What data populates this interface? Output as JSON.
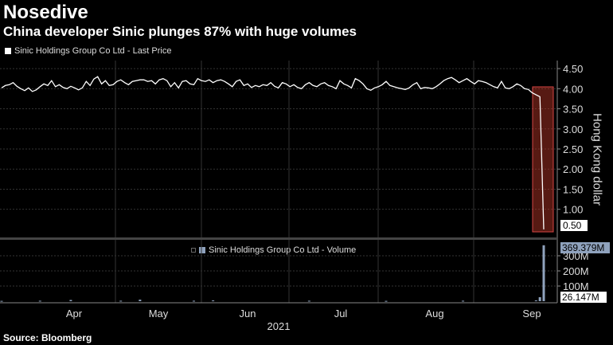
{
  "title": "Nosedive",
  "subtitle": "China developer Sinic plunges 87% with huge volumes",
  "source": "Source: Bloomberg",
  "colors": {
    "background": "#000000",
    "price_line": "#ffffff",
    "volume": "#8fa2bd",
    "highlight": "#c0392b"
  },
  "chart_data": [
    {
      "type": "line",
      "series": [
        {
          "name": "Sinic Holdings Group Co Ltd - Last Price"
        }
      ],
      "ylabel": "Hong Kong dollar",
      "ylim": [
        0.3,
        4.7
      ],
      "yticks": [
        "4.50",
        "4.00",
        "3.50",
        "3.00",
        "2.50",
        "2.00",
        "1.50",
        "1.00"
      ],
      "last_value_label": "0.50",
      "x": [
        0,
        1,
        2,
        3,
        4,
        5,
        6,
        7,
        8,
        9,
        10,
        11,
        12,
        13,
        14,
        15,
        16,
        17,
        18,
        19,
        20,
        21,
        22,
        23,
        24,
        25,
        26,
        27,
        28,
        29,
        30,
        31,
        32,
        33,
        34,
        35,
        36,
        37,
        38,
        39,
        40,
        41,
        42,
        43,
        44,
        45,
        46,
        47,
        48,
        49,
        50,
        51,
        52,
        53,
        54,
        55,
        56,
        57,
        58,
        59,
        60,
        61,
        62,
        63,
        64,
        65,
        66,
        67,
        68,
        69,
        70,
        71,
        72,
        73,
        74,
        75,
        76,
        77,
        78,
        79,
        80,
        81,
        82,
        83,
        84,
        85,
        86,
        87,
        88,
        89,
        90,
        91,
        92,
        93,
        94,
        95,
        96,
        97,
        98,
        99,
        100,
        101,
        102,
        103,
        104,
        105,
        106,
        107,
        108,
        109,
        110,
        111,
        112,
        113,
        114,
        115,
        116,
        117,
        118,
        119,
        120,
        121,
        122,
        123,
        124,
        125,
        126,
        127,
        128,
        129,
        130,
        131,
        132,
        133,
        134,
        135,
        136,
        137,
        138,
        139,
        140,
        141
      ],
      "values": [
        4.02,
        4.08,
        4.1,
        4.15,
        4.06,
        4.0,
        3.95,
        4.02,
        3.93,
        3.97,
        4.05,
        4.12,
        4.08,
        4.2,
        4.05,
        4.1,
        4.03,
        4.0,
        4.06,
        4.02,
        3.97,
        4.02,
        4.18,
        4.08,
        4.24,
        4.3,
        4.12,
        4.2,
        4.08,
        4.1,
        4.18,
        4.22,
        4.15,
        4.1,
        4.18,
        4.2,
        4.22,
        4.22,
        4.18,
        4.2,
        4.12,
        4.22,
        4.25,
        4.2,
        4.05,
        4.15,
        4.02,
        4.18,
        4.2,
        4.12,
        4.1,
        4.25,
        4.2,
        4.18,
        4.22,
        4.15,
        4.2,
        4.22,
        4.18,
        4.12,
        4.05,
        4.18,
        4.22,
        4.08,
        4.12,
        4.03,
        4.08,
        4.05,
        4.1,
        4.08,
        4.15,
        4.06,
        4.02,
        4.15,
        4.12,
        4.05,
        4.1,
        4.03,
        4.0,
        4.1,
        4.15,
        4.08,
        4.05,
        4.12,
        4.15,
        4.08,
        4.05,
        4.0,
        4.2,
        4.12,
        4.08,
        4.02,
        4.25,
        4.2,
        4.12,
        4.0,
        3.96,
        4.02,
        4.05,
        4.1,
        4.18,
        4.08,
        4.05,
        4.02,
        4.0,
        3.98,
        4.02,
        4.1,
        4.15,
        4.0,
        4.03,
        4.02,
        4.0,
        4.05,
        4.12,
        4.2,
        4.25,
        4.28,
        4.22,
        4.15,
        4.2,
        4.25,
        4.18,
        4.12,
        4.2,
        4.18,
        4.15,
        4.1,
        4.05,
        4.02,
        4.18,
        4.02,
        4.0,
        4.05,
        4.12,
        4.08,
        4.0,
        3.98,
        3.9,
        3.85,
        3.8,
        0.5
      ]
    },
    {
      "type": "bar",
      "series": [
        {
          "name": "Sinic Holdings Group Co Ltd - Volume"
        }
      ],
      "ylim": [
        0,
        400
      ],
      "yticks": [
        "300M",
        "200M",
        "100M"
      ],
      "last_value_label": "369.379M",
      "secondary_value_label": "26.147M",
      "x": [
        0,
        10,
        18,
        31,
        36,
        50,
        55,
        80,
        100,
        120,
        139,
        140,
        141
      ],
      "values": [
        2,
        3,
        8,
        3,
        10,
        3,
        5,
        3,
        2,
        3,
        5,
        26.147,
        369.379
      ]
    }
  ],
  "x_axis": {
    "months": [
      "Apr",
      "May",
      "Jun",
      "Jul",
      "Aug",
      "Sep"
    ],
    "year": "2021"
  }
}
